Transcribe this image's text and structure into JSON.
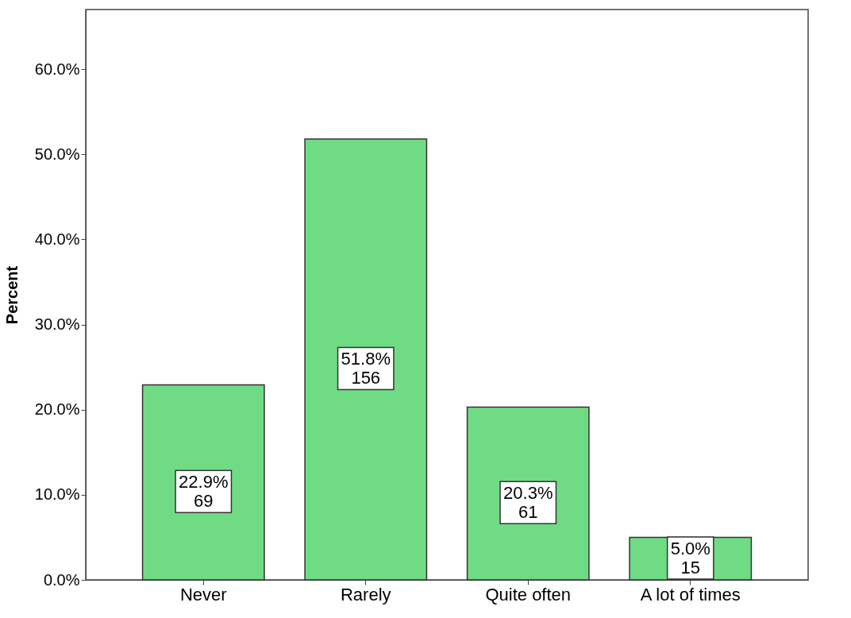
{
  "chart_data": {
    "type": "bar",
    "ylabel": "Percent",
    "categories": [
      "Never",
      "Rarely",
      "Quite often",
      "A lot of times"
    ],
    "values": [
      22.9,
      51.8,
      20.3,
      5.0
    ],
    "value_labels": [
      "22.9%\n69",
      "51.8%\n156",
      "20.3%\n61",
      "5.0%\n15"
    ],
    "color": "#6fdc85",
    "ylim": [
      0,
      67
    ],
    "yticks": [
      {
        "value": 0,
        "label": "0.0%"
      },
      {
        "value": 10,
        "label": "10.0%"
      },
      {
        "value": 20,
        "label": "20.0%"
      },
      {
        "value": 30,
        "label": "30.0%"
      },
      {
        "value": 40,
        "label": "40.0%"
      },
      {
        "value": 50,
        "label": "50.0%"
      },
      {
        "value": 60,
        "label": "60.0%"
      }
    ],
    "grid": false
  }
}
